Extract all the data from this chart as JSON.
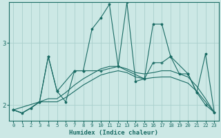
{
  "xlabel": "Humidex (Indice chaleur)",
  "background_color": "#cce8e5",
  "line_color": "#1a6b64",
  "grid_color": "#aacfcc",
  "xlim": [
    -0.5,
    23.5
  ],
  "ylim": [
    1.75,
    3.65
  ],
  "yticks": [
    2,
    3
  ],
  "xticks": [
    0,
    1,
    2,
    3,
    4,
    5,
    6,
    7,
    8,
    9,
    10,
    11,
    12,
    13,
    14,
    15,
    16,
    17,
    18,
    19,
    20,
    21,
    22,
    23
  ],
  "line1_x": [
    0,
    1,
    2,
    3,
    4,
    5,
    6,
    7,
    8,
    9,
    10,
    11,
    12,
    13,
    14,
    15,
    16,
    17,
    18,
    19,
    20,
    21,
    22,
    23
  ],
  "line1_y": [
    1.92,
    1.87,
    1.95,
    2.05,
    2.78,
    2.22,
    2.05,
    2.55,
    2.55,
    3.22,
    3.4,
    3.62,
    2.62,
    3.65,
    2.38,
    2.42,
    3.3,
    3.3,
    2.78,
    2.5,
    2.5,
    2.2,
    2.82,
    1.88
  ],
  "line2_x": [
    0,
    3,
    4,
    5,
    7,
    8,
    10,
    12,
    15,
    16,
    17,
    18,
    20,
    21,
    22,
    23
  ],
  "line2_y": [
    1.92,
    2.05,
    2.78,
    2.22,
    2.55,
    2.55,
    2.55,
    2.62,
    2.42,
    2.68,
    2.68,
    2.78,
    2.5,
    2.2,
    2.0,
    1.88
  ],
  "line3_x": [
    0,
    1,
    2,
    3,
    4,
    5,
    6,
    7,
    8,
    9,
    10,
    11,
    12,
    13,
    14,
    15,
    16,
    17,
    18,
    19,
    20,
    21,
    22,
    23
  ],
  "line3_y": [
    1.92,
    1.87,
    1.95,
    2.05,
    2.1,
    2.1,
    2.2,
    2.32,
    2.42,
    2.5,
    2.58,
    2.62,
    2.62,
    2.58,
    2.52,
    2.5,
    2.52,
    2.55,
    2.55,
    2.5,
    2.45,
    2.3,
    2.1,
    1.88
  ],
  "line4_x": [
    0,
    1,
    2,
    3,
    4,
    5,
    6,
    7,
    8,
    9,
    10,
    11,
    12,
    13,
    14,
    15,
    16,
    17,
    18,
    19,
    20,
    21,
    22,
    23
  ],
  "line4_y": [
    1.92,
    1.87,
    1.95,
    2.05,
    2.05,
    2.05,
    2.12,
    2.22,
    2.32,
    2.4,
    2.48,
    2.52,
    2.55,
    2.52,
    2.45,
    2.42,
    2.44,
    2.45,
    2.45,
    2.4,
    2.35,
    2.22,
    2.05,
    1.88
  ]
}
